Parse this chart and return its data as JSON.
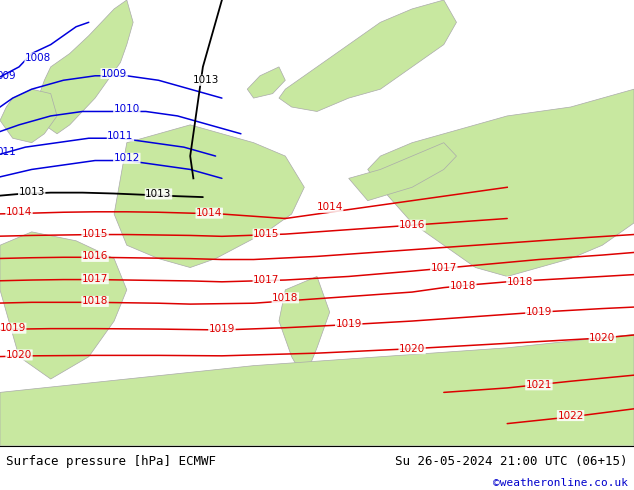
{
  "title_left": "Surface pressure [hPa] ECMWF",
  "title_right": "Su 26-05-2024 21:00 UTC (06+15)",
  "credit": "©weatheronline.co.uk",
  "sea_color": "#d8d8e8",
  "land_color": "#c8e8a0",
  "border_color": "#aaaaaa",
  "blue_color": "#0000dd",
  "black_color": "#000000",
  "red_color": "#dd0000",
  "footer_bg": "#ffffff",
  "isobar_linewidth": 1.1,
  "label_fontsize": 7.5,
  "footer_fontsize": 9,
  "credit_fontsize": 8,
  "title_left_color": "#000000",
  "title_right_color": "#000000",
  "credit_color": "#0000cc"
}
